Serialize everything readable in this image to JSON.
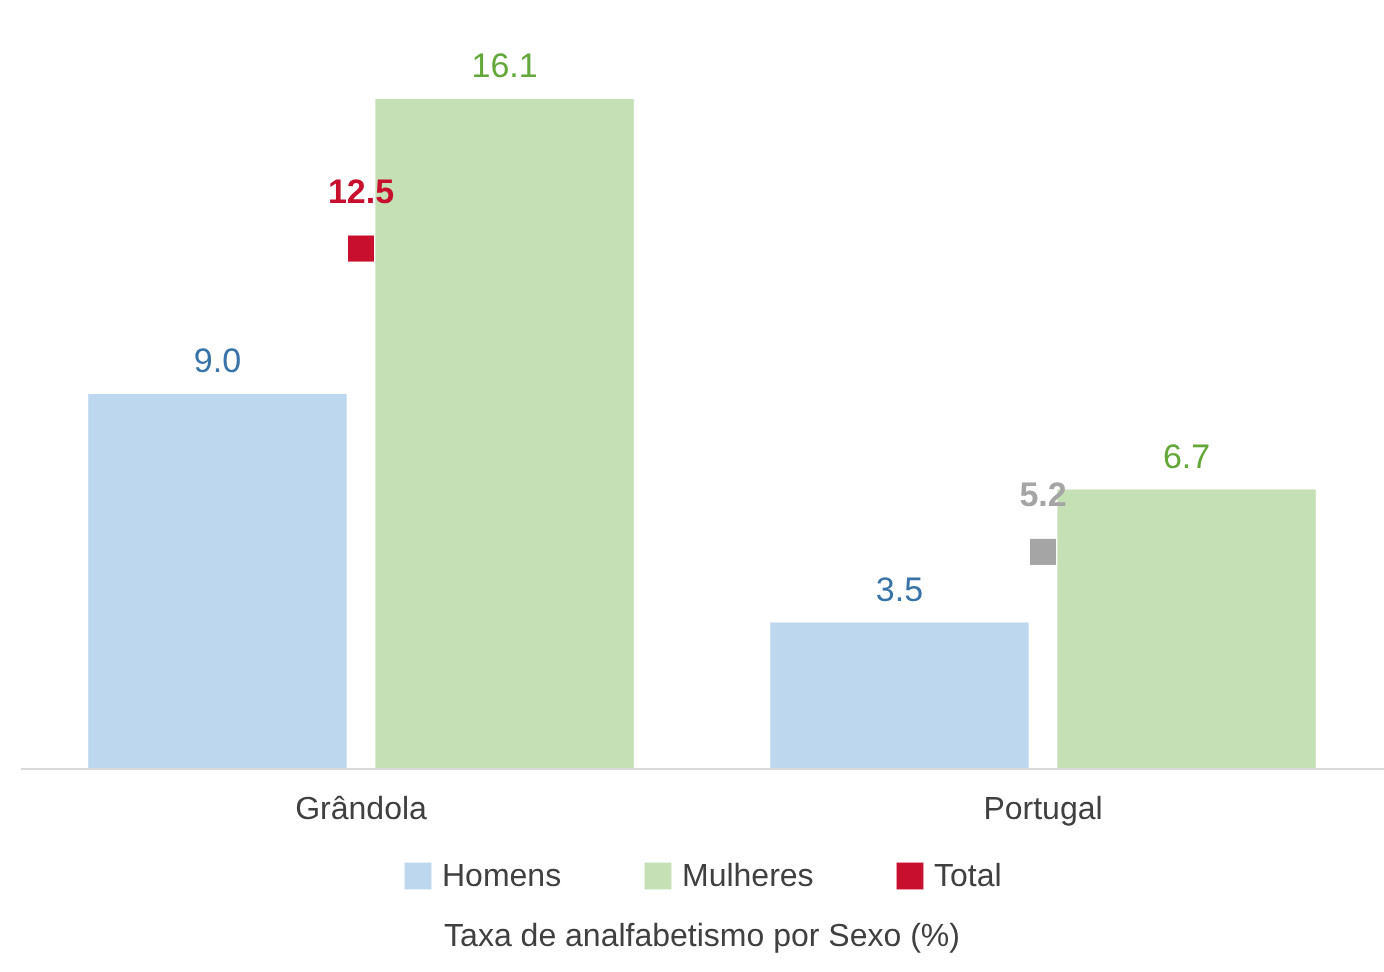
{
  "chart_data": {
    "type": "bar",
    "title": "Taxa de analfabetismo por Sexo (%)",
    "categories": [
      "Grândola",
      "Portugal"
    ],
    "series": [
      {
        "name": "Homens",
        "color": "#bdd7ee",
        "values": [
          9.0,
          3.5
        ],
        "value_labels": [
          "9.0",
          "3.5"
        ]
      },
      {
        "name": "Mulheres",
        "color": "#c5e0b4",
        "values": [
          16.1,
          6.7
        ],
        "value_labels": [
          "16.1",
          "6.7"
        ]
      },
      {
        "name": "Total",
        "type": "scatter",
        "color": "#c8102e",
        "colors": [
          "#c8102e",
          "#a5a5a5"
        ],
        "values": [
          12.5,
          5.2
        ],
        "value_labels": [
          "12.5",
          "5.2"
        ]
      }
    ],
    "legend": "bottom",
    "marker": "square"
  }
}
